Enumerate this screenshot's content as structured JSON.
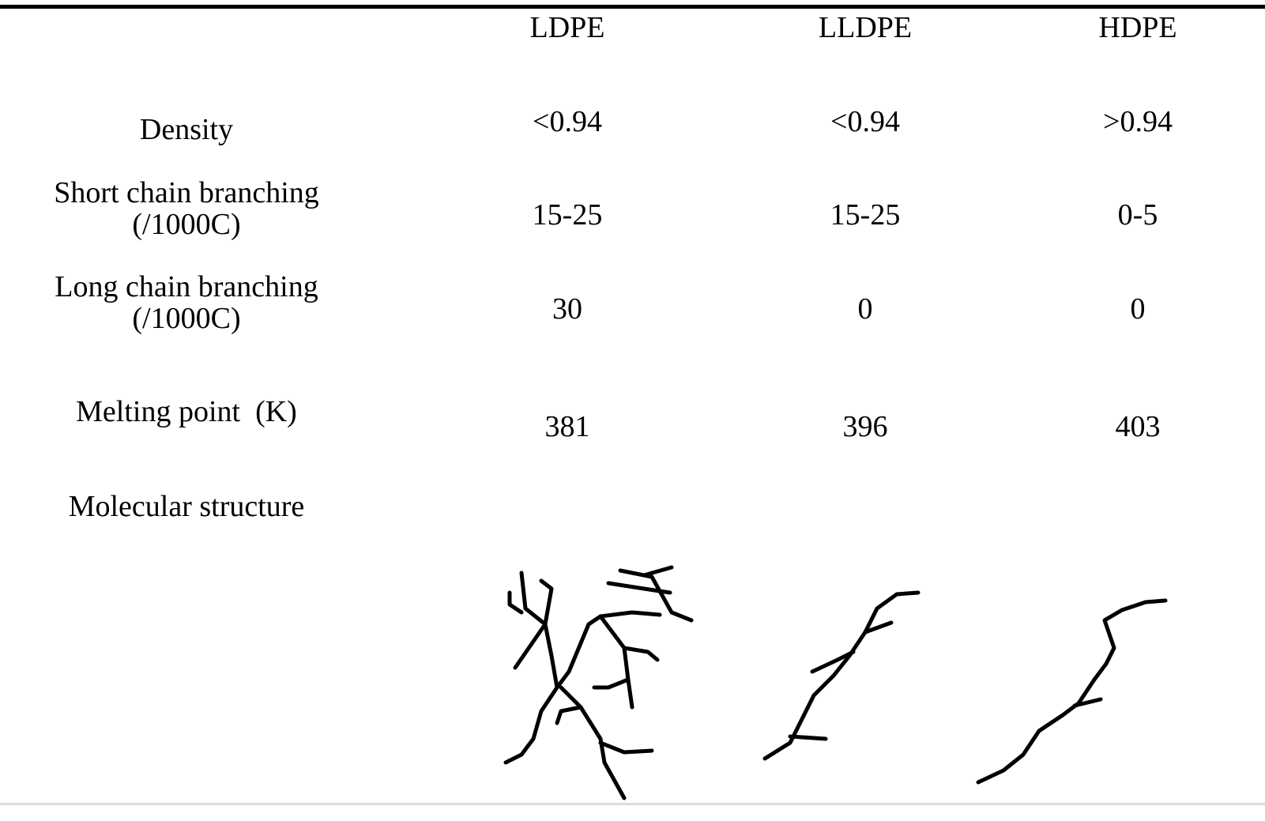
{
  "table": {
    "columns": [
      "LDPE",
      "LLDPE",
      "HDPE"
    ],
    "rows": [
      {
        "label": [
          "Density"
        ],
        "cells": [
          "<0.94",
          "<0.94",
          ">0.94"
        ]
      },
      {
        "label": [
          "Short chain branching",
          "(/1000C)"
        ],
        "cells": [
          "15-25",
          "15-25",
          "0-5"
        ]
      },
      {
        "label": [
          "Long chain branching",
          "(/1000C)"
        ],
        "cells": [
          "30",
          "0",
          "0"
        ]
      },
      {
        "label": [
          "Melting point  (K)"
        ],
        "cells": [
          "381",
          "396",
          "403"
        ]
      },
      {
        "label": [
          "Molecular structure"
        ]
      }
    ]
  }
}
